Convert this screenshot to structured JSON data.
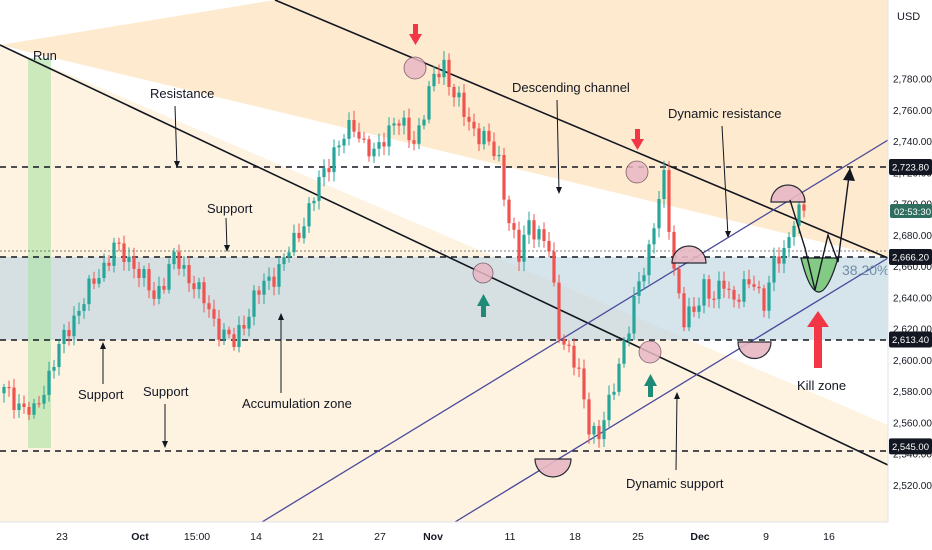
{
  "currency": "USD",
  "fib_label": "38.20%",
  "countdown": "02:53:30",
  "colors": {
    "up": "#26a69a",
    "down": "#ef5350",
    "arrow_red": "#f23645",
    "arrow_teal": "#1f8a78",
    "channel_fill": "#fde3ba",
    "zone_fill": "#c5d9e4",
    "below_fill": "#fde8c8",
    "dynamic_line": "#4a4a9c",
    "circle_fill": "#e8b8c4",
    "kill_green": "#7fc97f",
    "price_label_bg": "#131722",
    "countdown_bg": "#2f6e5e"
  },
  "chart_data": {
    "type": "candlestick",
    "title": "",
    "y_axis_unit": "USD",
    "ylim": [
      2508,
      2822
    ],
    "y_ticks": [
      2520,
      2540,
      2560,
      2580,
      2600,
      2620,
      2640,
      2660,
      2680,
      2700,
      2720,
      2740,
      2760,
      2780
    ],
    "x_ticks": [
      "23",
      "Oct",
      "15:00",
      "14",
      "21",
      "27",
      "Nov",
      "11",
      "18",
      "25",
      "Dec",
      "9",
      "16"
    ],
    "horizontal_levels": [
      2723.8,
      2666.2,
      2613.4,
      2545.0
    ],
    "price_labels": [
      "2,723.80",
      "2,666.20",
      "2,613.40",
      "2,545.00"
    ],
    "current_price": 2690,
    "accumulation_zone": [
      2613.4,
      2666.2
    ],
    "annotations": [
      "Run",
      "Resistance",
      "Support",
      "Support",
      "Support",
      "Accumulation zone",
      "Descending channel",
      "Dynamic resistance",
      "Dynamic support",
      "Kill zone"
    ],
    "close_anchors": [
      [
        0,
        2580
      ],
      [
        6,
        2565
      ],
      [
        10,
        2600
      ],
      [
        14,
        2628
      ],
      [
        18,
        2650
      ],
      [
        22,
        2672
      ],
      [
        26,
        2662
      ],
      [
        30,
        2640
      ],
      [
        34,
        2665
      ],
      [
        38,
        2650
      ],
      [
        42,
        2625
      ],
      [
        46,
        2610
      ],
      [
        50,
        2640
      ],
      [
        54,
        2655
      ],
      [
        58,
        2675
      ],
      [
        62,
        2705
      ],
      [
        66,
        2735
      ],
      [
        70,
        2750
      ],
      [
        74,
        2730
      ],
      [
        78,
        2755
      ],
      [
        82,
        2740
      ],
      [
        86,
        2780
      ],
      [
        88,
        2790
      ],
      [
        90,
        2770
      ],
      [
        93,
        2752
      ],
      [
        96,
        2742
      ],
      [
        99,
        2728
      ],
      [
        101,
        2690
      ],
      [
        103,
        2665
      ],
      [
        105,
        2690
      ],
      [
        107,
        2680
      ],
      [
        109,
        2670
      ],
      [
        111,
        2620
      ],
      [
        113,
        2605
      ],
      [
        115,
        2590
      ],
      [
        117,
        2560
      ],
      [
        119,
        2550
      ],
      [
        121,
        2572
      ],
      [
        123,
        2600
      ],
      [
        125,
        2620
      ],
      [
        127,
        2650
      ],
      [
        129,
        2672
      ],
      [
        131,
        2702
      ],
      [
        132,
        2715
      ],
      [
        134,
        2660
      ],
      [
        136,
        2625
      ],
      [
        138,
        2630
      ],
      [
        140,
        2650
      ],
      [
        142,
        2638
      ],
      [
        144,
        2650
      ],
      [
        146,
        2640
      ],
      [
        148,
        2645
      ],
      [
        150,
        2650
      ],
      [
        152,
        2638
      ],
      [
        154,
        2660
      ],
      [
        156,
        2670
      ],
      [
        158,
        2692
      ],
      [
        160,
        2695
      ]
    ]
  }
}
